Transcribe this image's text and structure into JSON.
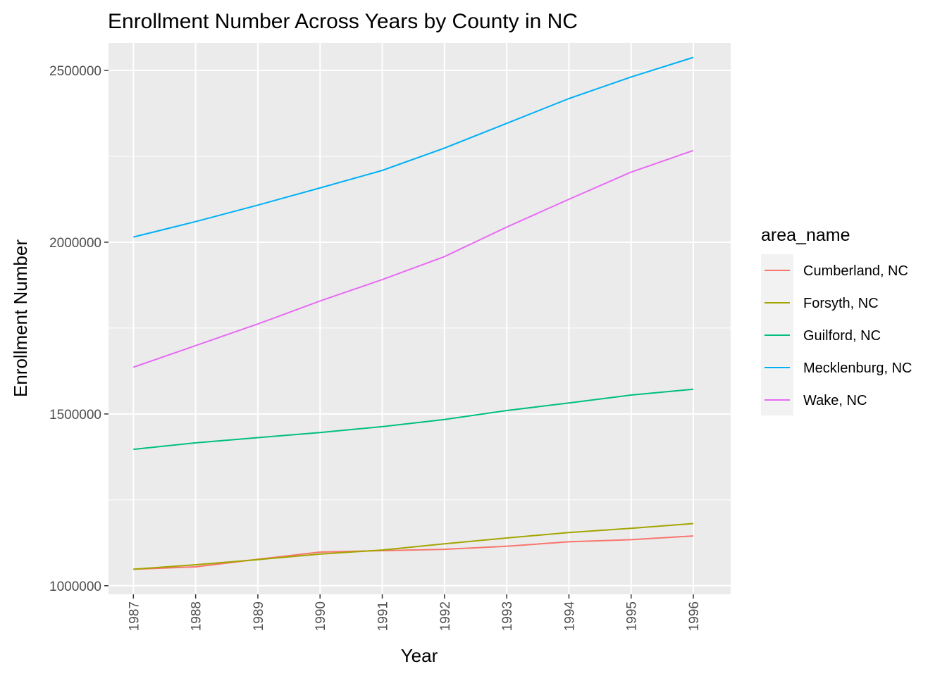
{
  "chart_data": {
    "type": "line",
    "title": "Enrollment Number Across Years by County in NC",
    "xlabel": "Year",
    "ylabel": "Enrollment Number",
    "x": [
      1987,
      1988,
      1989,
      1990,
      1991,
      1992,
      1993,
      1994,
      1995,
      1996
    ],
    "x_tick_labels": [
      "1987",
      "1988",
      "1989",
      "1990",
      "1991",
      "1992",
      "1993",
      "1994",
      "1995",
      "1996"
    ],
    "y_ticks": [
      1000000,
      1500000,
      2000000,
      2500000
    ],
    "y_tick_labels": [
      "1000000",
      "1500000",
      "2000000",
      "2500000"
    ],
    "ylim": [
      975000,
      2580000
    ],
    "xlim": [
      1986.6,
      1996.6
    ],
    "grid": true,
    "legend": {
      "title": "area_name",
      "placement": "right"
    },
    "series": [
      {
        "name": "Cumberland, NC",
        "color": "#F8766D",
        "values": [
          1048000,
          1055000,
          1077000,
          1098000,
          1102000,
          1106000,
          1115000,
          1128000,
          1134000,
          1145000
        ]
      },
      {
        "name": "Forsyth, NC",
        "color": "#A3A500",
        "values": [
          1048000,
          1061000,
          1076000,
          1092000,
          1104000,
          1122000,
          1139000,
          1155000,
          1167000,
          1181000
        ]
      },
      {
        "name": "Guilford, NC",
        "color": "#00BF7D",
        "values": [
          1397000,
          1416000,
          1431000,
          1446000,
          1463000,
          1484000,
          1510000,
          1532000,
          1555000,
          1572000
        ]
      },
      {
        "name": "Mecklenburg, NC",
        "color": "#00B0F6",
        "values": [
          2015000,
          2060000,
          2108000,
          2158000,
          2209000,
          2274000,
          2346000,
          2418000,
          2481000,
          2538000
        ]
      },
      {
        "name": "Wake, NC",
        "color": "#E76BF3",
        "values": [
          1636000,
          1699000,
          1762000,
          1829000,
          1891000,
          1958000,
          2044000,
          2125000,
          2204000,
          2267000
        ]
      }
    ]
  }
}
